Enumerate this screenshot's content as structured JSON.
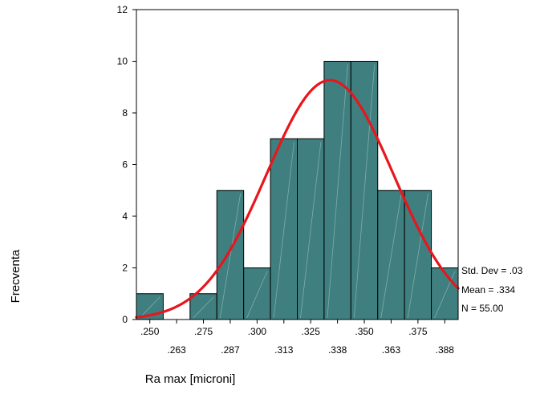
{
  "chart_data": {
    "type": "bar",
    "subtype": "histogram",
    "categories": [
      ".250",
      ".263",
      ".275",
      ".287",
      ".300",
      ".313",
      ".325",
      ".338",
      ".350",
      ".363",
      ".375",
      ".388"
    ],
    "values": [
      1,
      0,
      1,
      5,
      2,
      7,
      7,
      10,
      10,
      5,
      5,
      2
    ],
    "xlabel": "Ra max [microni]",
    "ylabel": "Frecventa",
    "ylim": [
      0,
      12
    ],
    "yticks": [
      "0",
      "2",
      "4",
      "6",
      "8",
      "10",
      "12"
    ],
    "x_tick_labels_upper": [
      ".250",
      ".275",
      ".300",
      ".325",
      ".350",
      ".375"
    ],
    "x_tick_labels_lower": [
      ".263",
      ".287",
      ".313",
      ".338",
      ".363",
      ".388"
    ],
    "bar_width": 0.0125,
    "normal_curve": {
      "mean": 0.334,
      "std_dev": 0.0296,
      "n": 55
    },
    "stats": [
      "Std. Dev = .03",
      "Mean = .334",
      "N = 55.00"
    ],
    "colors": {
      "bar": "#3f7f7f",
      "curve": "#e8161c",
      "axis": "#000000"
    },
    "grid": false
  }
}
